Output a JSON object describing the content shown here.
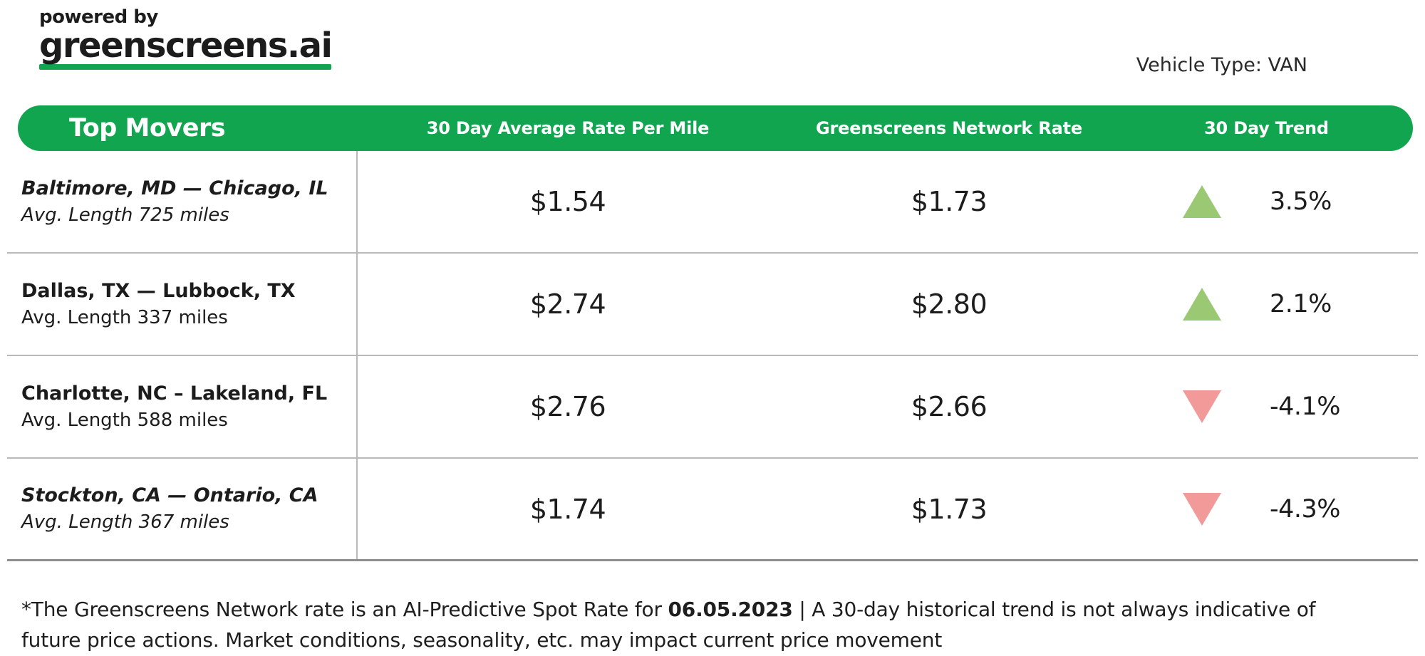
{
  "logo": {
    "powered_by": "powered by",
    "brand": "greenscreens.ai"
  },
  "page": {
    "vehicle_type": "Vehicle Type: VAN"
  },
  "table": {
    "title": "Top Movers",
    "columns": [
      "30 Day Average Rate Per Mile",
      "Greenscreens Network Rate",
      "30 Day Trend"
    ],
    "rows": [
      {
        "lane": "Baltimore, MD — Chicago, IL",
        "avg_length": "Avg. Length 725 miles",
        "italic": true,
        "avg_rate": "$1.54",
        "network_rate": "$1.73",
        "trend_direction": "up",
        "trend_pct": "3.5%"
      },
      {
        "lane": "Dallas, TX — Lubbock, TX",
        "avg_length": "Avg. Length 337 miles",
        "italic": false,
        "avg_rate": "$2.74",
        "network_rate": "$2.80",
        "trend_direction": "up",
        "trend_pct": "2.1%"
      },
      {
        "lane": "Charlotte, NC – Lakeland, FL",
        "avg_length": "Avg. Length 588 miles",
        "italic": false,
        "avg_rate": "$2.76",
        "network_rate": "$2.66",
        "trend_direction": "down",
        "trend_pct": "-4.1%"
      },
      {
        "lane": "Stockton, CA — Ontario, CA",
        "avg_length": "Avg. Length 367 miles",
        "italic": true,
        "avg_rate": "$1.74",
        "network_rate": "$1.73",
        "trend_direction": "down",
        "trend_pct": "-4.3%"
      }
    ]
  },
  "footnote": {
    "prefix": "*The Greenscreens Network rate is an AI-Predictive Spot Rate for ",
    "date": "06.05.2023",
    "suffix": " | A 30-day historical trend is not always indicative of future price actions. Market conditions, seasonality, etc. may impact current price movement"
  },
  "colors": {
    "brand_green": "#11A550",
    "trend_up": "#9AC873",
    "trend_down": "#F29A9A",
    "divider": "#b9b9b9"
  }
}
